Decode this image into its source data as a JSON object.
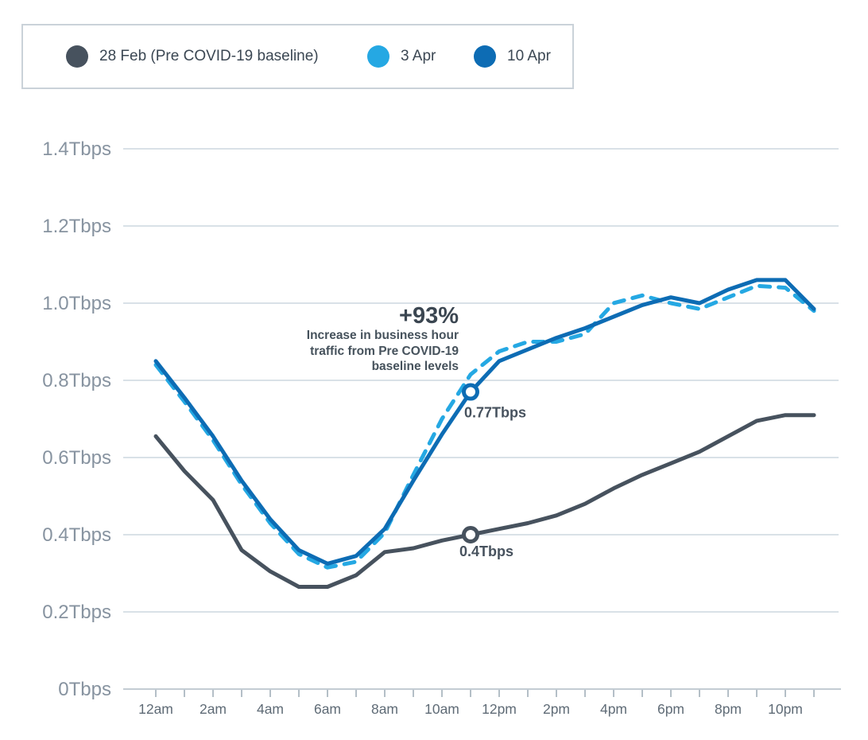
{
  "legend": {
    "items": [
      {
        "label": "28 Feb (Pre COVID-19 baseline)",
        "color": "#47525e"
      },
      {
        "label": "3 Apr",
        "color": "#25a8e3"
      },
      {
        "label": "10 Apr",
        "color": "#0d6cb4"
      }
    ]
  },
  "annotation": {
    "title": "+93%",
    "lines": [
      "Increase in business hour",
      "traffic from Pre COVID-19",
      "baseline levels"
    ]
  },
  "colors": {
    "background": "#ffffff",
    "gridline": "#d9e1e7",
    "axis_line": "#c3ccd3",
    "tick": "#b4bfc7",
    "y_label": "#8793a0",
    "x_label": "#5f6b76",
    "annotation_text": "#3d4956",
    "marker_fill": "#ffffff"
  },
  "chart_data": {
    "type": "line",
    "title": "",
    "xlabel": "",
    "ylabel": "",
    "unit": "Tbps",
    "grid": "horizontal",
    "legend_position": "top-left",
    "ylim": [
      0,
      1.4
    ],
    "y_tick_step": 0.2,
    "y_axis_labels": [
      "0Tbps",
      "0.2Tbps",
      "0.4Tbps",
      "0.6Tbps",
      "0.8Tbps",
      "1.0Tbps",
      "1.2Tbps",
      "1.4Tbps"
    ],
    "x_axis_labels": [
      "12am",
      "2am",
      "4am",
      "6am",
      "8am",
      "10am",
      "12pm",
      "2pm",
      "4pm",
      "6pm",
      "8pm",
      "10pm"
    ],
    "categories": [
      "12am",
      "1am",
      "2am",
      "3am",
      "4am",
      "5am",
      "6am",
      "7am",
      "8am",
      "9am",
      "10am",
      "11am",
      "12pm",
      "1pm",
      "2pm",
      "3pm",
      "4pm",
      "5pm",
      "6pm",
      "7pm",
      "8pm",
      "9pm",
      "10pm",
      "11pm"
    ],
    "series": [
      {
        "name": "28 Feb (Pre COVID-19 baseline)",
        "color": "#47525e",
        "style": "solid",
        "values": [
          0.655,
          0.565,
          0.49,
          0.36,
          0.305,
          0.265,
          0.265,
          0.295,
          0.355,
          0.365,
          0.385,
          0.4,
          0.415,
          0.43,
          0.45,
          0.48,
          0.52,
          0.555,
          0.585,
          0.615,
          0.655,
          0.695,
          0.71,
          0.71
        ]
      },
      {
        "name": "3 Apr",
        "color": "#25a8e3",
        "style": "dashed",
        "values": [
          0.84,
          0.745,
          0.645,
          0.53,
          0.43,
          0.35,
          0.315,
          0.33,
          0.405,
          0.555,
          0.7,
          0.815,
          0.875,
          0.9,
          0.9,
          0.92,
          1.0,
          1.02,
          1.0,
          0.985,
          1.015,
          1.045,
          1.04,
          0.98
        ]
      },
      {
        "name": "10 Apr",
        "color": "#0d6cb4",
        "style": "solid",
        "values": [
          0.85,
          0.755,
          0.655,
          0.54,
          0.44,
          0.36,
          0.325,
          0.345,
          0.415,
          0.54,
          0.66,
          0.77,
          0.85,
          0.88,
          0.91,
          0.935,
          0.965,
          0.995,
          1.015,
          1.0,
          1.035,
          1.06,
          1.06,
          0.985
        ]
      }
    ],
    "markers": [
      {
        "series": "10 Apr",
        "category": "11am",
        "value": 0.77,
        "label": "0.77Tbps",
        "label_offset": [
          -8,
          32
        ]
      },
      {
        "series": "28 Feb (Pre COVID-19 baseline)",
        "category": "11am",
        "value": 0.4,
        "label": "0.4Tbps",
        "label_offset": [
          -14,
          27
        ]
      }
    ]
  }
}
